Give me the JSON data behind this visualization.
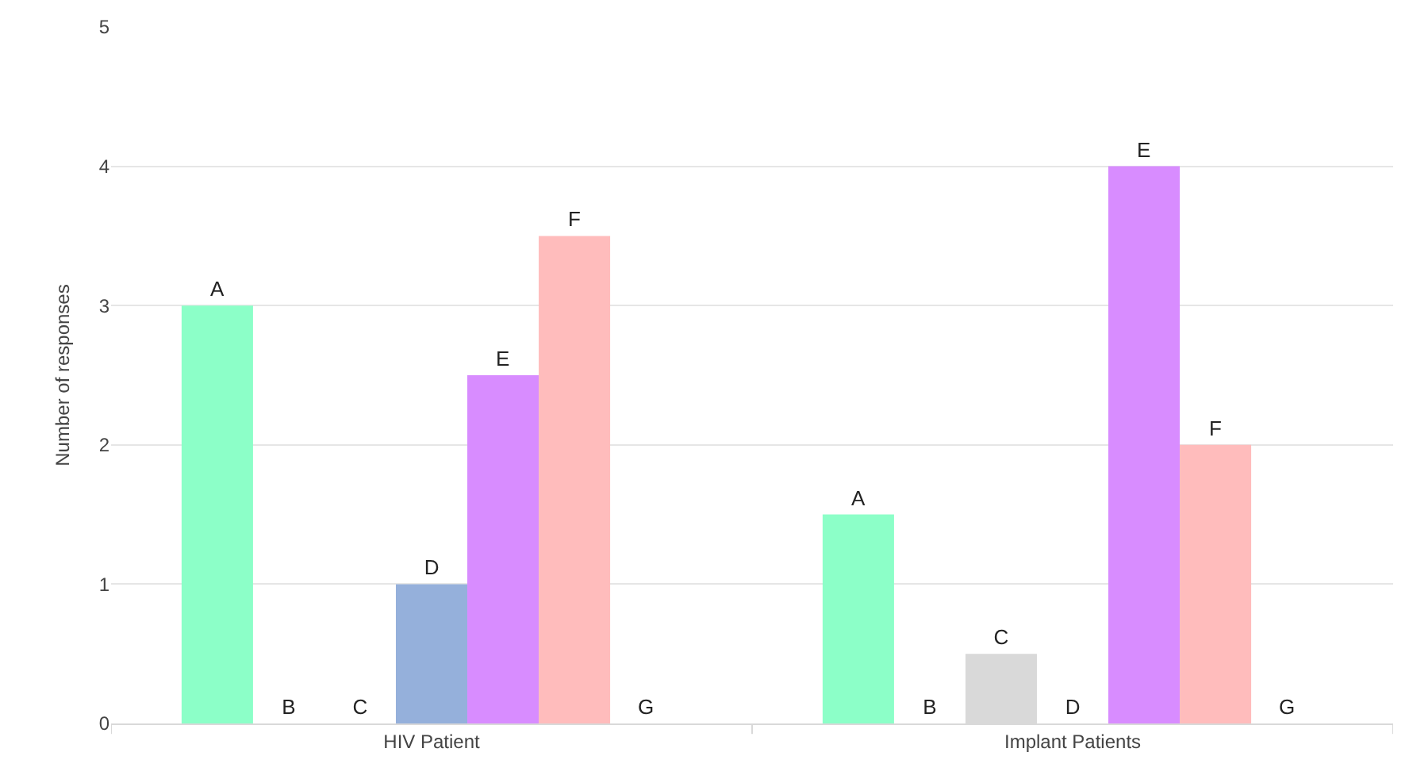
{
  "chart_data": {
    "type": "bar",
    "ylabel": "Number of responses",
    "categories": [
      "HIV Patient",
      "Implant Patients"
    ],
    "series": [
      {
        "name": "A",
        "color": "#8cffc8",
        "values": [
          3,
          1.5
        ]
      },
      {
        "name": "B",
        "values": [
          0,
          0
        ]
      },
      {
        "name": "C",
        "color": "#d9d9d9",
        "values": [
          0,
          0.5
        ]
      },
      {
        "name": "D",
        "color": "#95b0db",
        "values": [
          1,
          0
        ]
      },
      {
        "name": "E",
        "color": "#d88cff",
        "values": [
          2.5,
          4
        ]
      },
      {
        "name": "F",
        "color": "#ffbcbc",
        "values": [
          3.5,
          2
        ]
      },
      {
        "name": "G",
        "values": [
          0,
          0
        ]
      }
    ],
    "ylim": [
      0,
      5
    ],
    "yticks": [
      0,
      1,
      2,
      3,
      4,
      5
    ],
    "grid": "y",
    "legend": false
  }
}
